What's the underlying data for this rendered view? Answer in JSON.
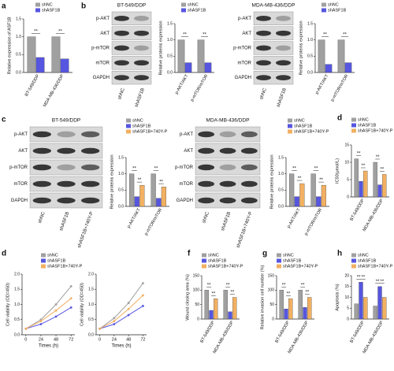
{
  "panel_labels": [
    "a",
    "b",
    "c",
    "d",
    "d",
    "f",
    "g",
    "h"
  ],
  "blots": [
    {
      "title": "BT-549/DDP",
      "rows": [
        "p-AKT",
        "AKT",
        "p-mTOR",
        "mTOR",
        "GAPDH"
      ],
      "lanes": [
        "shNC",
        "shASF1B"
      ]
    },
    {
      "title": "MDA-MB-436/DDP",
      "rows": [
        "p-AKT",
        "AKT",
        "p-mTOR",
        "mTOR",
        "GAPDH"
      ],
      "lanes": [
        "shNC",
        "shASF1B"
      ]
    },
    {
      "title": "BT-549/DDP",
      "rows": [
        "p-AKT",
        "AKT",
        "p-mTOR",
        "mTOR",
        "GAPDH"
      ],
      "lanes": [
        "shNC",
        "shASF1B",
        "shASF1B+740Y-P"
      ]
    },
    {
      "title": "MDA-MB-436/DDP",
      "rows": [
        "p-AKT",
        "AKT",
        "p-mTOR",
        "mTOR",
        "GAPDH"
      ],
      "lanes": [
        "shNC",
        "shASF1B",
        "shASF1B+740Y-P"
      ]
    }
  ],
  "chart_data": [
    {
      "type": "bar",
      "ylabel": "Relative expression of ASF1B",
      "categories": [
        "BT-549/DDP",
        "MDA-MB-436/DDP"
      ],
      "series": [
        {
          "name": "shNC",
          "color": "#a0a0a0",
          "values": [
            1.0,
            1.0
          ]
        },
        {
          "name": "shASF1B",
          "color": "#5656e0",
          "values": [
            0.42,
            0.38
          ]
        }
      ],
      "ylim": [
        0,
        1.5
      ],
      "yticks": [
        {
          "value": 0,
          "label": "0.0"
        },
        0.5,
        {
          "value": 1,
          "label": "1.0"
        },
        1.5
      ],
      "significance": [
        [
          "**"
        ],
        [
          "**"
        ]
      ],
      "legend": true
    },
    {
      "type": "bar",
      "ylabel": "Relative proteins expression",
      "categories": [
        "p-AKT/AKT",
        "p-mTOR/mTOR"
      ],
      "series": [
        {
          "name": "shNC",
          "color": "#a0a0a0",
          "values": [
            1.0,
            1.0
          ]
        },
        {
          "name": "shASF1B",
          "color": "#5656e0",
          "values": [
            0.3,
            0.3
          ]
        }
      ],
      "ylim": [
        0,
        1.5
      ],
      "yticks": [
        {
          "value": 0,
          "label": "0.0"
        },
        0.5,
        {
          "value": 1,
          "label": "1.0"
        },
        1.5
      ],
      "significance": [
        [
          "**"
        ],
        [
          "**"
        ]
      ],
      "legend": true
    },
    {
      "type": "bar",
      "ylabel": "Relative proteins expression",
      "categories": [
        "p-AKT/AKT",
        "p-mTOR/mTOR"
      ],
      "series": [
        {
          "name": "shNC",
          "color": "#a0a0a0",
          "values": [
            1.0,
            1.0
          ]
        },
        {
          "name": "shASF1B",
          "color": "#5656e0",
          "values": [
            0.25,
            0.3
          ]
        }
      ],
      "ylim": [
        0,
        1.5
      ],
      "yticks": [
        {
          "value": 0,
          "label": "0.0"
        },
        0.5,
        {
          "value": 1,
          "label": "1.0"
        },
        1.5
      ],
      "significance": [
        [
          "**"
        ],
        [
          "**"
        ]
      ],
      "legend": true
    },
    {
      "type": "bar",
      "ylabel": "Relative proteins expression",
      "categories": [
        "p-AKT/AKT",
        "p-mTOR/mTOR"
      ],
      "series": [
        {
          "name": "shNC",
          "color": "#a0a0a0",
          "values": [
            1.0,
            1.0
          ]
        },
        {
          "name": "shASF1B",
          "color": "#5656e0",
          "values": [
            0.3,
            0.25
          ]
        },
        {
          "name": "shASF1B+740Y-P",
          "color": "#f2b062",
          "values": [
            0.65,
            0.6
          ]
        }
      ],
      "ylim": [
        0,
        1.5
      ],
      "yticks": [
        {
          "value": 0,
          "label": "0.0"
        },
        0.5,
        {
          "value": 1,
          "label": "1.0"
        },
        1.5
      ],
      "significance": [
        [
          "**",
          "**"
        ],
        [
          "**",
          "**"
        ]
      ],
      "legend": true
    },
    {
      "type": "bar",
      "ylabel": "Relative proteins expression",
      "categories": [
        "p-AKT/AKT",
        "p-mTOR/mTOR"
      ],
      "series": [
        {
          "name": "shNC",
          "color": "#a0a0a0",
          "values": [
            1.0,
            1.0
          ]
        },
        {
          "name": "shASF1B",
          "color": "#5656e0",
          "values": [
            0.3,
            0.3
          ]
        },
        {
          "name": "shASF1B+740Y-P",
          "color": "#f2b062",
          "values": [
            0.7,
            0.65
          ]
        }
      ],
      "ylim": [
        0,
        1.5
      ],
      "yticks": [
        {
          "value": 0,
          "label": "0.0"
        },
        0.5,
        {
          "value": 1,
          "label": "1.0"
        },
        1.5
      ],
      "significance": [
        [
          "**",
          "**"
        ],
        [
          "**",
          "**"
        ]
      ],
      "legend": true
    },
    {
      "type": "bar",
      "ylabel": "IC50(μmol/L)",
      "categories": [
        "BT-549/DDP",
        "MDA-MB-436/DDP"
      ],
      "series": [
        {
          "name": "shNC",
          "color": "#a0a0a0",
          "values": [
            11,
            10
          ]
        },
        {
          "name": "shASF1B",
          "color": "#5656e0",
          "values": [
            4.5,
            3.5
          ]
        },
        {
          "name": "shASF1B+740Y-P",
          "color": "#f2b062",
          "values": [
            7.5,
            6.5
          ]
        }
      ],
      "ylim": [
        0,
        15
      ],
      "yticks": [
        0,
        5,
        10,
        15
      ],
      "significance": [
        [
          "**",
          "**"
        ],
        [
          "**",
          "**"
        ]
      ],
      "legend": true
    },
    {
      "type": "line",
      "ylabel": "Cell viability (OD=450)",
      "xlabel": "Times (h)",
      "x": [
        0,
        24,
        48,
        72
      ],
      "series": [
        {
          "name": "shNC",
          "color": "#a0a0a0",
          "values": [
            0.2,
            0.5,
            1.0,
            1.6
          ]
        },
        {
          "name": "shASF1B",
          "color": "#5656e0",
          "values": [
            0.2,
            0.35,
            0.6,
            0.9
          ]
        },
        {
          "name": "shASF1B+740Y-P",
          "color": "#f2b062",
          "values": [
            0.2,
            0.45,
            0.8,
            1.2
          ]
        }
      ],
      "xlim": [
        -6,
        78
      ],
      "xticks": [
        0,
        24,
        48,
        72
      ],
      "ylim": [
        0,
        2
      ],
      "yticks": [
        {
          "value": 0,
          "label": "0.0"
        },
        0.5,
        {
          "value": 1,
          "label": "1.0"
        },
        1.5,
        {
          "value": 2,
          "label": "2.0"
        }
      ],
      "legend": true
    },
    {
      "type": "line",
      "ylabel": "Cell viability (OD=450)",
      "xlabel": "Times (h)",
      "x": [
        0,
        24,
        48,
        72
      ],
      "series": [
        {
          "color": "#a0a0a0",
          "values": [
            0.2,
            0.55,
            1.05,
            1.7
          ]
        },
        {
          "color": "#5656e0",
          "values": [
            0.2,
            0.35,
            0.65,
            0.95
          ]
        },
        {
          "color": "#f2b062",
          "values": [
            0.2,
            0.45,
            0.85,
            1.3
          ]
        }
      ],
      "xlim": [
        -6,
        78
      ],
      "xticks": [
        0,
        24,
        48,
        72
      ],
      "ylim": [
        0,
        2
      ],
      "yticks": [
        {
          "value": 0,
          "label": "0.0"
        },
        0.5,
        {
          "value": 1,
          "label": "1.0"
        },
        1.5,
        {
          "value": 2,
          "label": "2.0"
        }
      ],
      "legend": false
    },
    {
      "type": "bar",
      "ylabel": "Wound closing area (%)",
      "categories": [
        "BT-549/DDP",
        "MDA-MB-436/DDP"
      ],
      "series": [
        {
          "name": "shNC",
          "color": "#a0a0a0",
          "values": [
            100,
            100
          ]
        },
        {
          "name": "shASF1B",
          "color": "#5656e0",
          "values": [
            30,
            25
          ]
        },
        {
          "name": "shASF1B+740Y-P",
          "color": "#f2b062",
          "values": [
            70,
            75
          ]
        }
      ],
      "ylim": [
        0,
        150
      ],
      "yticks": [
        0,
        50,
        100,
        150
      ],
      "significance": [
        [
          "**",
          "**"
        ],
        [
          "**",
          "**"
        ]
      ],
      "legend": true
    },
    {
      "type": "bar",
      "ylabel": "Relative invasion cell number (%)",
      "categories": [
        "BT-549/DDP",
        "MDA-MB-436/DDP"
      ],
      "series": [
        {
          "name": "shNC",
          "color": "#a0a0a0",
          "values": [
            100,
            100
          ]
        },
        {
          "name": "shASF1B",
          "color": "#5656e0",
          "values": [
            35,
            40
          ]
        },
        {
          "name": "shASF1B+740Y-P",
          "color": "#f2b062",
          "values": [
            70,
            75
          ]
        }
      ],
      "ylim": [
        0,
        150
      ],
      "yticks": [
        0,
        50,
        100,
        150
      ],
      "significance": [
        [
          "**",
          "**"
        ],
        [
          "**",
          "**"
        ]
      ],
      "legend": true
    },
    {
      "type": "bar",
      "ylabel": "Apoptosis (%)",
      "categories": [
        "BT-549/DDP",
        "MDA-MB-436/DDP"
      ],
      "series": [
        {
          "name": "shNC",
          "color": "#a0a0a0",
          "values": [
            7,
            6
          ]
        },
        {
          "name": "shASF1B",
          "color": "#5656e0",
          "values": [
            17,
            15
          ]
        },
        {
          "name": "shASF1B+740Y-P",
          "color": "#f2b062",
          "values": [
            10,
            10
          ]
        }
      ],
      "ylim": [
        0,
        20
      ],
      "yticks": [
        0,
        5,
        10,
        15,
        20
      ],
      "significance": [
        [
          "**",
          "**"
        ],
        [
          "**",
          "**"
        ]
      ],
      "legend": true
    }
  ]
}
